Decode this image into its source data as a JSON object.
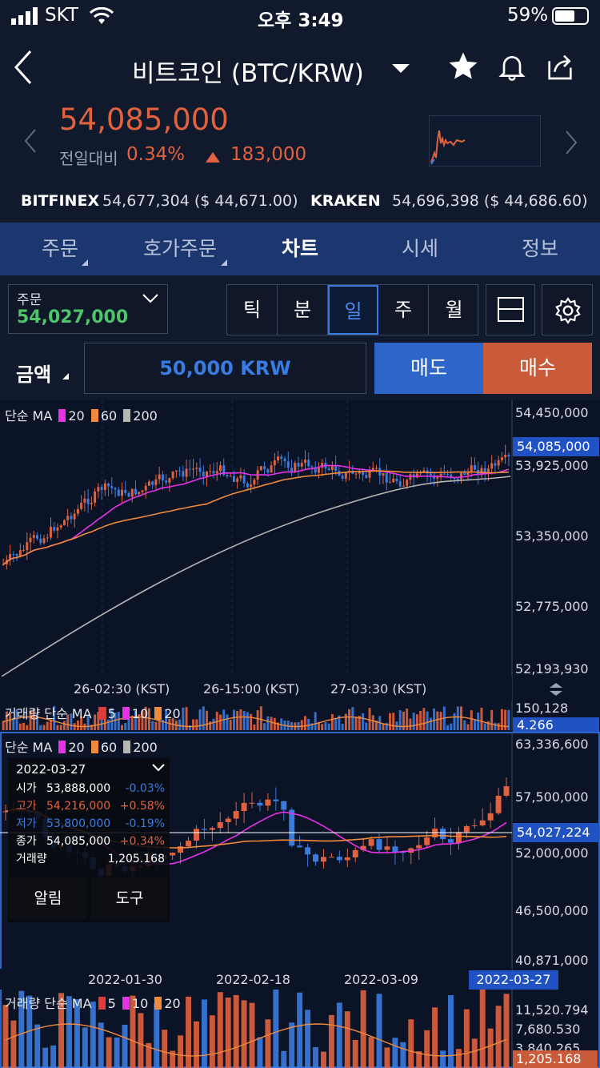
{
  "status": {
    "carrier": "SKT",
    "time": "오후 3:49",
    "battery": "59%"
  },
  "header": {
    "title": "비트코인 (BTC/KRW)",
    "price": "54,085,000",
    "change_label": "전일대비",
    "change_pct": "0.34%",
    "change_amt": "183,000"
  },
  "exchanges": [
    {
      "name": "BITFINEX",
      "value": "54,677,304 ($ 44,671.00)"
    },
    {
      "name": "KRAKEN",
      "value": "54,696,398 ($ 44,686.60)"
    }
  ],
  "tabs": [
    "주문",
    "호가주문",
    "차트",
    "시세",
    "정보"
  ],
  "order": {
    "label": "주문",
    "value": "54,027,000"
  },
  "periods": [
    "틱",
    "분",
    "일",
    "주",
    "월"
  ],
  "amount": {
    "label": "금액",
    "value": "50,000 KRW",
    "sell": "매도",
    "buy": "매수"
  },
  "chart1": {
    "legend": {
      "prefix": "단순 MA",
      "p1": "20",
      "p2": "60",
      "p3": "200"
    },
    "axis": [
      "54,450,000",
      "53,925,000",
      "53,350,000",
      "52,775,000",
      "52,193,930"
    ],
    "current": "54,085,000",
    "xlabels": [
      "26-02:30 (KST)",
      "26-15:00 (KST)",
      "27-03:30 (KST)"
    ],
    "vol_legend": {
      "prefix": "거래량 단순 MA",
      "p1": "5",
      "p2": "10",
      "p3": "20"
    },
    "vol_axis": "150,128",
    "vol_current": "4.266"
  },
  "chart2": {
    "legend": {
      "prefix": "단순 MA",
      "p1": "20",
      "p2": "60",
      "p3": "200"
    },
    "axis": [
      "63,336,600",
      "57,500,000",
      "52,000,000",
      "46,500,000",
      "40,871,000"
    ],
    "current": "54,027,224",
    "xlabels": [
      "2022-01-30",
      "2022-02-18",
      "2022-03-09"
    ],
    "xcurrent": "2022-03-27",
    "vol_legend": {
      "prefix": "거래량 단순 MA",
      "p1": "5",
      "p2": "10",
      "p3": "20"
    },
    "vol_axis": [
      "11,520.794",
      "7,680.530",
      "3,840.265"
    ],
    "vol_current": "1,205.168",
    "info": {
      "date": "2022-03-27",
      "rows": [
        {
          "k": "시가",
          "v": "53,888,000",
          "p": "-0.03%"
        },
        {
          "k": "고가",
          "v": "54,216,000",
          "p": "+0.58%"
        },
        {
          "k": "저가",
          "v": "53,800,000",
          "p": "-0.19%"
        },
        {
          "k": "종가",
          "v": "54,085,000",
          "p": "+0.34%"
        }
      ],
      "vol_label": "거래량",
      "vol": "1,205.168",
      "alarm": "알림",
      "tools": "도구"
    }
  },
  "colors": {
    "up": "#e0623e",
    "down": "#3a7be0",
    "ma20": "#e832e8",
    "ma60": "#f08a3c",
    "ma200": "#b5b5b5",
    "accent": "#2152c4"
  }
}
